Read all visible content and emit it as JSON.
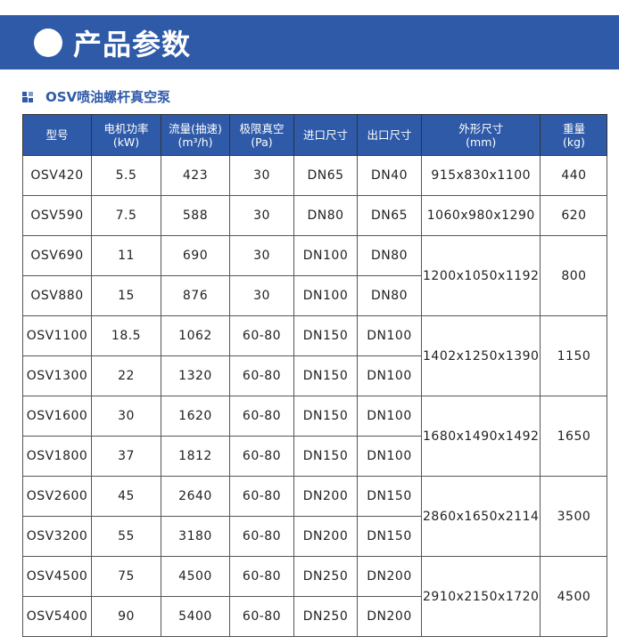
{
  "banner": {
    "title": "产品参数"
  },
  "section": {
    "title": "OSV喷油螺杆真空泵"
  },
  "table": {
    "headers": [
      [
        "型号",
        ""
      ],
      [
        "电机功率",
        "(kW)"
      ],
      [
        "流量(抽速)",
        "(m³/h)"
      ],
      [
        "极限真空",
        "(Pa)"
      ],
      [
        "进口尺寸",
        ""
      ],
      [
        "出口尺寸",
        ""
      ],
      [
        "外形尺寸",
        "(mm)"
      ],
      [
        "重量",
        "(kg)"
      ]
    ],
    "rows": [
      [
        "OSV420",
        "5.5",
        "423",
        "30",
        "DN65",
        "DN40"
      ],
      [
        "OSV590",
        "7.5",
        "588",
        "30",
        "DN80",
        "DN65"
      ],
      [
        "OSV690",
        "11",
        "690",
        "30",
        "DN100",
        "DN80"
      ],
      [
        "OSV880",
        "15",
        "876",
        "30",
        "DN100",
        "DN80"
      ],
      [
        "OSV1100",
        "18.5",
        "1062",
        "60-80",
        "DN150",
        "DN100"
      ],
      [
        "OSV1300",
        "22",
        "1320",
        "60-80",
        "DN150",
        "DN100"
      ],
      [
        "OSV1600",
        "30",
        "1620",
        "60-80",
        "DN150",
        "DN100"
      ],
      [
        "OSV1800",
        "37",
        "1812",
        "60-80",
        "DN150",
        "DN100"
      ],
      [
        "OSV2600",
        "45",
        "2640",
        "60-80",
        "DN200",
        "DN150"
      ],
      [
        "OSV3200",
        "55",
        "3180",
        "60-80",
        "DN200",
        "DN150"
      ],
      [
        "OSV4500",
        "75",
        "4500",
        "60-80",
        "DN250",
        "DN200"
      ],
      [
        "OSV5400",
        "90",
        "5400",
        "60-80",
        "DN250",
        "DN200"
      ]
    ],
    "groups": [
      {
        "rows": 1,
        "size": "915x830x1100",
        "weight": "440"
      },
      {
        "rows": 1,
        "size": "1060x980x1290",
        "weight": "620"
      },
      {
        "rows": 2,
        "size": "1200x1050x1192",
        "weight": "800"
      },
      {
        "rows": 2,
        "size": "1402x1250x1390",
        "weight": "1150"
      },
      {
        "rows": 2,
        "size": "1680x1490x1492",
        "weight": "1650"
      },
      {
        "rows": 2,
        "size": "2860x1650x2114",
        "weight": "3500"
      },
      {
        "rows": 2,
        "size": "2910x2150x1720",
        "weight": "4500"
      }
    ]
  }
}
